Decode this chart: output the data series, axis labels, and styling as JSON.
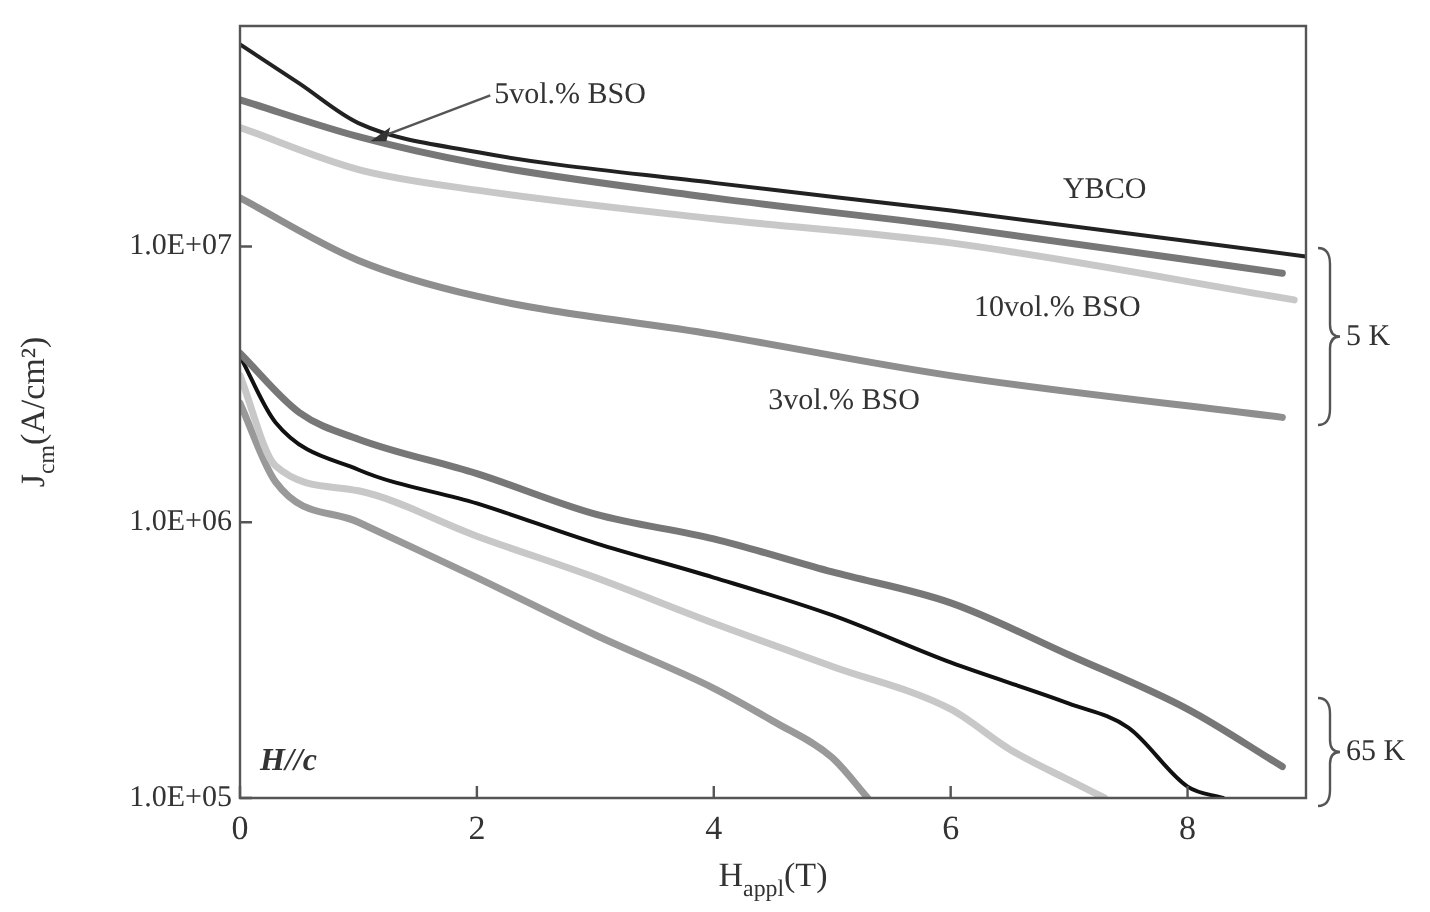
{
  "chart_data": {
    "type": "line",
    "xlabel": "H$_{appl}$(T)",
    "ylabel": "J$_{cm}$(A/cm²)",
    "log": "y",
    "grid": false,
    "legend": false,
    "marker": "none",
    "line_style": "solid",
    "xlim": [
      0,
      9
    ],
    "xticks": [
      0,
      2,
      4,
      6,
      8
    ],
    "ylim": [
      100000,
      63000000
    ],
    "yticks": [
      {
        "value": 100000,
        "label": "1.0E+05"
      },
      {
        "value": 1000000,
        "label": "1.0E+06"
      },
      {
        "value": 10000000,
        "label": "1.0E+07"
      }
    ],
    "series": [
      {
        "name": "YBCO",
        "color": "#222222",
        "x": [
          0,
          0.5,
          1,
          2,
          4,
          6,
          9
        ],
        "values": [
          54000000,
          39000000,
          28000000,
          22000000,
          17000000,
          13500000,
          9200000
        ]
      },
      {
        "name": "5vol.% BSO",
        "color": "#777777",
        "x": [
          0,
          1,
          2,
          4,
          6,
          8.8
        ],
        "values": [
          34000000,
          25000000,
          20000000,
          15000000,
          11800000,
          8000000
        ]
      },
      {
        "name": "10vol.% BSO",
        "color": "#c8c8c8",
        "x": [
          0,
          1,
          2,
          4,
          6,
          8.9
        ],
        "values": [
          27000000,
          19000000,
          16000000,
          12600000,
          10300000,
          6400000
        ]
      },
      {
        "name": "3vol.% BSO",
        "color": "#8e8e8e",
        "x": [
          0,
          1,
          2,
          4,
          6,
          8.8
        ],
        "values": [
          15000000,
          8900000,
          6600000,
          4800000,
          3400000,
          2400000
        ]
      },
      {
        "color": "#777777",
        "x": [
          0,
          0.5,
          1,
          2,
          3,
          4,
          5,
          6,
          7,
          8,
          8.8
        ],
        "values": [
          4100000,
          2500000,
          2000000,
          1500000,
          1070000,
          870000,
          660000,
          510000,
          330000,
          210000,
          130000
        ]
      },
      {
        "color": "#111111",
        "x": [
          0,
          0.3,
          1,
          2,
          3,
          4,
          5,
          6,
          7,
          7.5,
          8,
          8.3
        ],
        "values": [
          4000000,
          2300000,
          1550000,
          1170000,
          840000,
          630000,
          460000,
          310000,
          220000,
          180000,
          110000,
          100000
        ]
      },
      {
        "color": "#c8c8c8",
        "x": [
          0,
          0.3,
          1,
          2,
          3,
          4,
          5,
          6,
          6.5,
          7,
          7.3
        ],
        "values": [
          3400000,
          1600000,
          1300000,
          890000,
          630000,
          430000,
          300000,
          210000,
          150000,
          116000,
          100000
        ]
      },
      {
        "color": "#999999",
        "x": [
          0,
          0.3,
          1,
          2,
          3,
          4,
          4.5,
          5,
          5.3
        ],
        "values": [
          2700000,
          1400000,
          1000000,
          630000,
          390000,
          250000,
          190000,
          140000,
          100000
        ]
      }
    ],
    "annotations": [
      "5 K",
      "65 K",
      "H//c"
    ]
  }
}
